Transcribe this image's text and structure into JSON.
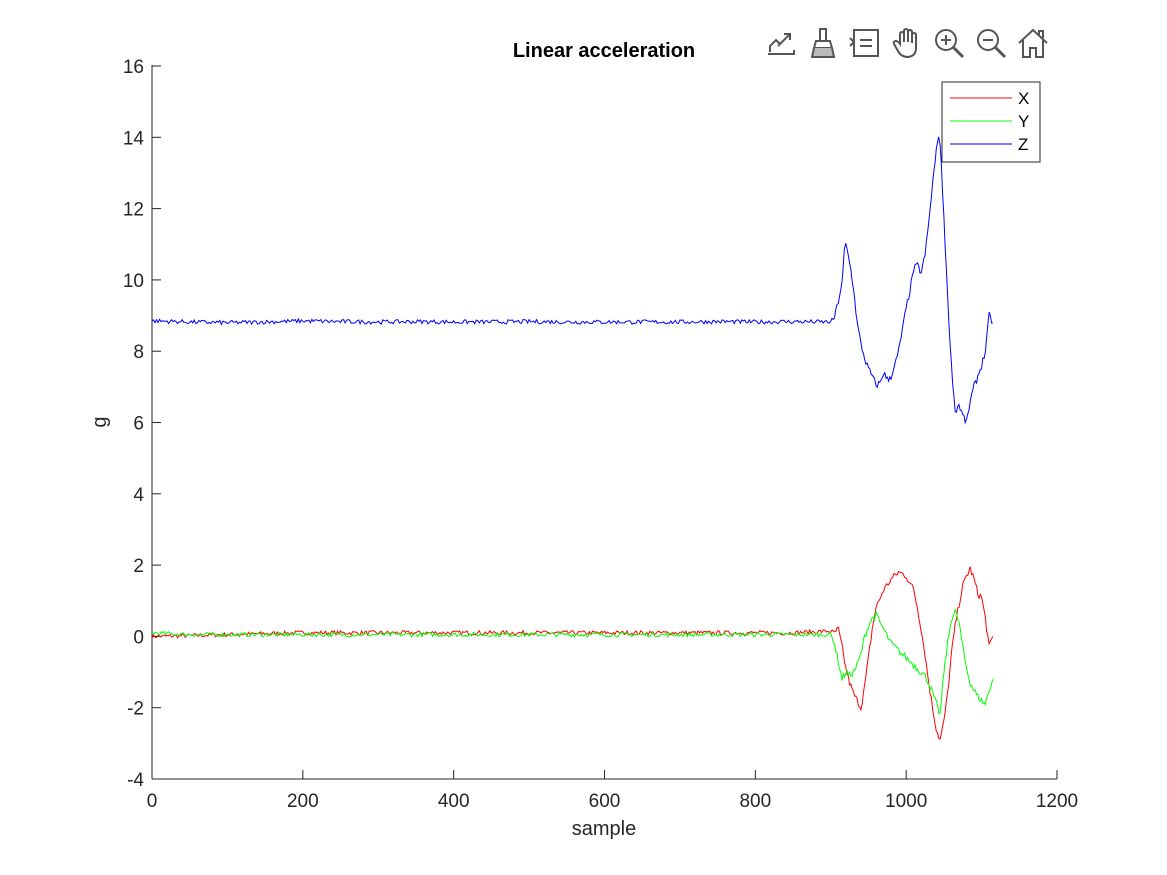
{
  "toolbar": {
    "items": [
      {
        "name": "export-icon"
      },
      {
        "name": "brush-icon"
      },
      {
        "name": "legend-toggle-icon"
      },
      {
        "name": "pan-hand-icon"
      },
      {
        "name": "zoom-in-icon"
      },
      {
        "name": "zoom-out-icon"
      },
      {
        "name": "home-icon"
      }
    ]
  },
  "chart_data": {
    "type": "line",
    "title": "Linear acceleration",
    "xlabel": "sample",
    "ylabel": "g",
    "xlim": [
      0,
      1200
    ],
    "ylim": [
      -4,
      16
    ],
    "xticks": [
      0,
      200,
      400,
      600,
      800,
      1000,
      1200
    ],
    "xtick_labels": [
      "0",
      "200",
      "400",
      "600",
      "800",
      "1000",
      "1200"
    ],
    "yticks": [
      -4,
      -2,
      0,
      2,
      4,
      6,
      8,
      10,
      12,
      14,
      16
    ],
    "ytick_labels": [
      "-4",
      "-2",
      "0",
      "2",
      "4",
      "6",
      "8",
      "10",
      "12",
      "14",
      "16"
    ],
    "grid": false,
    "legend_position": "top-right",
    "series": [
      {
        "name": "X",
        "color": "#ff0000",
        "x": [
          0,
          50,
          100,
          150,
          200,
          250,
          300,
          350,
          400,
          450,
          500,
          550,
          600,
          650,
          700,
          750,
          800,
          850,
          900,
          905,
          910,
          915,
          920,
          925,
          930,
          935,
          940,
          945,
          950,
          955,
          960,
          970,
          980,
          990,
          1000,
          1010,
          1015,
          1020,
          1025,
          1030,
          1035,
          1040,
          1045,
          1050,
          1055,
          1060,
          1065,
          1070,
          1075,
          1080,
          1085,
          1090,
          1095,
          1100,
          1105,
          1110,
          1115
        ],
        "y": [
          0,
          0.02,
          0.05,
          0.08,
          0.1,
          0.1,
          0.1,
          0.1,
          0.1,
          0.1,
          0.1,
          0.1,
          0.1,
          0.1,
          0.1,
          0.1,
          0.1,
          0.1,
          0.15,
          0.1,
          0.2,
          -0.3,
          -0.9,
          -1.3,
          -1.6,
          -1.8,
          -2.0,
          -1.4,
          -0.6,
          0.2,
          0.8,
          1.3,
          1.6,
          1.8,
          1.7,
          1.3,
          0.8,
          0.2,
          -0.5,
          -1.3,
          -2.0,
          -2.6,
          -2.9,
          -2.4,
          -1.6,
          -0.5,
          0.3,
          0.9,
          1.4,
          1.7,
          1.9,
          1.6,
          1.2,
          1.1,
          0.5,
          -0.3,
          0.0
        ]
      },
      {
        "name": "Y",
        "color": "#00ff00",
        "x": [
          0,
          50,
          100,
          150,
          200,
          250,
          300,
          350,
          400,
          450,
          500,
          550,
          600,
          650,
          700,
          750,
          800,
          850,
          900,
          905,
          910,
          915,
          920,
          925,
          930,
          935,
          940,
          945,
          950,
          955,
          960,
          970,
          980,
          990,
          1000,
          1010,
          1015,
          1020,
          1025,
          1030,
          1035,
          1040,
          1045,
          1050,
          1055,
          1060,
          1065,
          1070,
          1075,
          1080,
          1085,
          1090,
          1095,
          1100,
          1105,
          1110,
          1115
        ],
        "y": [
          0.1,
          0.05,
          0.05,
          0.05,
          0.05,
          0.05,
          0.05,
          0.05,
          0.05,
          0.05,
          0.05,
          0.05,
          0.05,
          0.05,
          0.05,
          0.05,
          0.05,
          0.05,
          0.05,
          -0.2,
          -0.7,
          -1.2,
          -1.0,
          -1.1,
          -1.0,
          -0.8,
          -0.5,
          0.0,
          0.3,
          0.5,
          0.6,
          0.2,
          -0.2,
          -0.4,
          -0.6,
          -0.8,
          -0.9,
          -1.0,
          -1.1,
          -1.3,
          -1.6,
          -1.9,
          -2.2,
          -1.0,
          -0.2,
          0.5,
          0.7,
          0.4,
          -0.3,
          -0.9,
          -1.3,
          -1.5,
          -1.7,
          -1.8,
          -1.9,
          -1.5,
          -1.2
        ]
      },
      {
        "name": "Z",
        "color": "#0000ff",
        "x": [
          0,
          50,
          100,
          150,
          200,
          250,
          300,
          350,
          400,
          450,
          500,
          550,
          600,
          650,
          700,
          750,
          800,
          850,
          900,
          905,
          910,
          915,
          918,
          920,
          925,
          930,
          935,
          940,
          945,
          950,
          955,
          960,
          965,
          970,
          975,
          980,
          985,
          990,
          995,
          1000,
          1005,
          1010,
          1015,
          1020,
          1025,
          1030,
          1035,
          1040,
          1043,
          1045,
          1050,
          1055,
          1060,
          1065,
          1070,
          1075,
          1080,
          1085,
          1090,
          1095,
          1100,
          1105,
          1110,
          1115
        ],
        "y": [
          8.85,
          8.82,
          8.8,
          8.82,
          8.85,
          8.83,
          8.82,
          8.83,
          8.82,
          8.82,
          8.83,
          8.82,
          8.82,
          8.82,
          8.82,
          8.83,
          8.82,
          8.83,
          8.82,
          8.95,
          9.4,
          9.9,
          10.8,
          11.0,
          10.5,
          9.8,
          8.8,
          8.2,
          7.8,
          7.5,
          7.3,
          7.05,
          7.1,
          7.4,
          7.2,
          7.3,
          7.6,
          8.0,
          8.6,
          9.2,
          9.7,
          10.3,
          10.4,
          10.2,
          10.7,
          11.6,
          12.7,
          13.6,
          14.1,
          13.8,
          11.8,
          9.5,
          7.6,
          6.3,
          6.5,
          6.2,
          6.0,
          6.6,
          7.0,
          7.3,
          7.6,
          8.0,
          9.0,
          8.8
        ]
      }
    ]
  }
}
